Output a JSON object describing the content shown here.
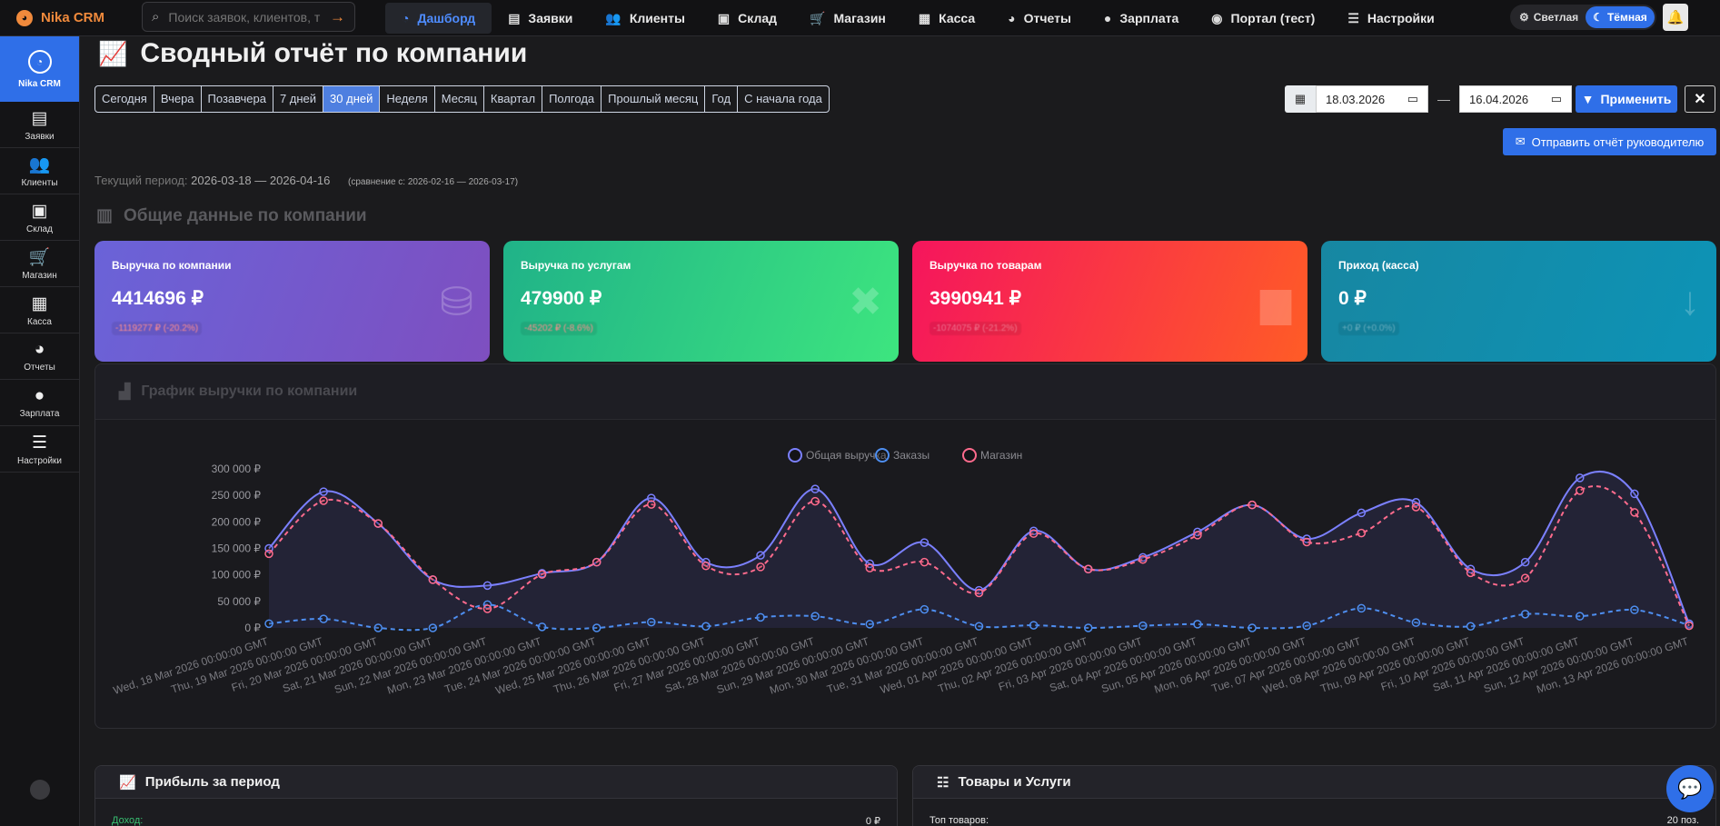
{
  "app": {
    "brand": "Nika CRM"
  },
  "search": {
    "placeholder": "Поиск заявок, клиентов, т"
  },
  "nav": [
    {
      "label": "Дашборд",
      "icon": "dashboard-icon",
      "active": true
    },
    {
      "label": "Заявки",
      "icon": "file-icon"
    },
    {
      "label": "Клиенты",
      "icon": "users-icon"
    },
    {
      "label": "Склад",
      "icon": "boxes-icon"
    },
    {
      "label": "Магазин",
      "icon": "cart-icon"
    },
    {
      "label": "Касса",
      "icon": "cash-register-icon"
    },
    {
      "label": "Отчеты",
      "icon": "pie-chart-icon"
    },
    {
      "label": "Зарплата",
      "icon": "user-icon"
    },
    {
      "label": "Портал (тест)",
      "icon": "portal-icon"
    },
    {
      "label": "Настройки",
      "icon": "sliders-icon"
    }
  ],
  "theme": {
    "light": "Светлая",
    "dark": "Тёмная",
    "selected": "dark"
  },
  "sidebar": {
    "brand": "Nika CRM",
    "items": [
      {
        "label": "Заявки",
        "icon": "file-icon"
      },
      {
        "label": "Клиенты",
        "icon": "users-icon"
      },
      {
        "label": "Склад",
        "icon": "boxes-icon"
      },
      {
        "label": "Магазин",
        "icon": "cart-icon"
      },
      {
        "label": "Касса",
        "icon": "cash-register-icon"
      },
      {
        "label": "Отчеты",
        "icon": "pie-chart-icon"
      },
      {
        "label": "Зарплата",
        "icon": "user-icon"
      },
      {
        "label": "Настройки",
        "icon": "sliders-icon"
      }
    ]
  },
  "header": {
    "title": "Сводный отчёт по компании",
    "ranges": [
      "Сегодня",
      "Вчера",
      "Позавчера",
      "7 дней",
      "30 дней",
      "Неделя",
      "Месяц",
      "Квартал",
      "Полгода",
      "Прошлый месяц",
      "Год",
      "С начала года"
    ],
    "active_range": "30 дней",
    "date_from": "18.03.2026",
    "date_to": "16.04.2026",
    "apply_label": "Применить",
    "send_label": "Отправить отчёт руководителю"
  },
  "period": {
    "label": "Текущий период:",
    "value": "2026-03-18 — 2026-04-16",
    "comparison": "(сравнение с: 2026-02-16 — 2026-03-17)"
  },
  "section_title": "Общие данные по компании",
  "cards": [
    {
      "label": "Выручка по компании",
      "value": "4414696 ₽",
      "delta": "-1119277 ₽ (-20.2%)",
      "icon": "coins-icon"
    },
    {
      "label": "Выручка по услугам",
      "value": "479900 ₽",
      "delta": "-45202 ₽ (-8.6%)",
      "icon": "tools-icon"
    },
    {
      "label": "Выручка по товарам",
      "value": "3990941 ₽",
      "delta": "-1074075 ₽ (-21.2%)",
      "icon": "box-icon"
    },
    {
      "label": "Приход (касса)",
      "value": "0 ₽",
      "delta": "+0 ₽ (+0.0%)",
      "icon": "arrow-down-icon"
    }
  ],
  "chart_title": "График выручки по компании",
  "chart_data": {
    "type": "line",
    "title": "",
    "legend_position": "top",
    "categories": [
      "Wed, 18 Mar 2026 00:00:00 GMT",
      "Thu, 19 Mar 2026 00:00:00 GMT",
      "Fri, 20 Mar 2026 00:00:00 GMT",
      "Sat, 21 Mar 2026 00:00:00 GMT",
      "Sun, 22 Mar 2026 00:00:00 GMT",
      "Mon, 23 Mar 2026 00:00:00 GMT",
      "Tue, 24 Mar 2026 00:00:00 GMT",
      "Wed, 25 Mar 2026 00:00:00 GMT",
      "Thu, 26 Mar 2026 00:00:00 GMT",
      "Fri, 27 Mar 2026 00:00:00 GMT",
      "Sat, 28 Mar 2026 00:00:00 GMT",
      "Sun, 29 Mar 2026 00:00:00 GMT",
      "Mon, 30 Mar 2026 00:00:00 GMT",
      "Tue, 31 Mar 2026 00:00:00 GMT",
      "Wed, 01 Apr 2026 00:00:00 GMT",
      "Thu, 02 Apr 2026 00:00:00 GMT",
      "Fri, 03 Apr 2026 00:00:00 GMT",
      "Sat, 04 Apr 2026 00:00:00 GMT",
      "Sun, 05 Apr 2026 00:00:00 GMT",
      "Mon, 06 Apr 2026 00:00:00 GMT",
      "Tue, 07 Apr 2026 00:00:00 GMT",
      "Wed, 08 Apr 2026 00:00:00 GMT",
      "Thu, 09 Apr 2026 00:00:00 GMT",
      "Fri, 10 Apr 2026 00:00:00 GMT",
      "Sat, 11 Apr 2026 00:00:00 GMT",
      "Sun, 12 Apr 2026 00:00:00 GMT",
      "Mon, 13 Apr 2026 00:00:00 GMT"
    ],
    "ylim": [
      0,
      300000
    ],
    "yticks": [
      "300 000 ₽",
      "250 000 ₽",
      "200 000 ₽",
      "150 000 ₽",
      "100 000 ₽",
      "50 000 ₽",
      "0 ₽"
    ],
    "grid": false,
    "series": [
      {
        "name": "Общая выручка",
        "color": "#7b80ff",
        "dashed": false,
        "fill": true,
        "values": [
          150000,
          257000,
          197000,
          91000,
          80000,
          103000,
          124000,
          245000,
          124000,
          137000,
          262000,
          121000,
          161000,
          71000,
          183000,
          111000,
          133000,
          181000,
          232000,
          168000,
          217000,
          237000,
          111000,
          124000,
          283000,
          253000,
          8000
        ]
      },
      {
        "name": "Заказы",
        "color": "#4e8ef0",
        "dashed": true,
        "fill": false,
        "values": [
          8000,
          17000,
          0,
          0,
          44000,
          2000,
          0,
          11000,
          3000,
          20000,
          22000,
          7000,
          35000,
          3000,
          5000,
          0,
          4000,
          7000,
          0,
          4000,
          37000,
          10000,
          3000,
          26000,
          22000,
          34000,
          5000
        ]
      },
      {
        "name": "Магазин",
        "color": "#ff6b8d",
        "dashed": true,
        "fill": false,
        "values": [
          140000,
          240000,
          197000,
          91000,
          36000,
          101000,
          124000,
          233000,
          117000,
          115000,
          239000,
          113000,
          124000,
          66000,
          178000,
          111000,
          129000,
          175000,
          232000,
          162000,
          179000,
          228000,
          104000,
          94000,
          259000,
          218000,
          4000
        ]
      }
    ]
  },
  "bottom": {
    "profit": {
      "title": "Прибыль за период",
      "row_label": "Доход:",
      "row_value": "0 ₽"
    },
    "goods": {
      "title": "Товары и Услуги",
      "row_label": "Топ товаров:",
      "row_value": "20 поз."
    }
  },
  "colors": {
    "accent": "#2f6fe8",
    "brand": "#f08a3c"
  }
}
